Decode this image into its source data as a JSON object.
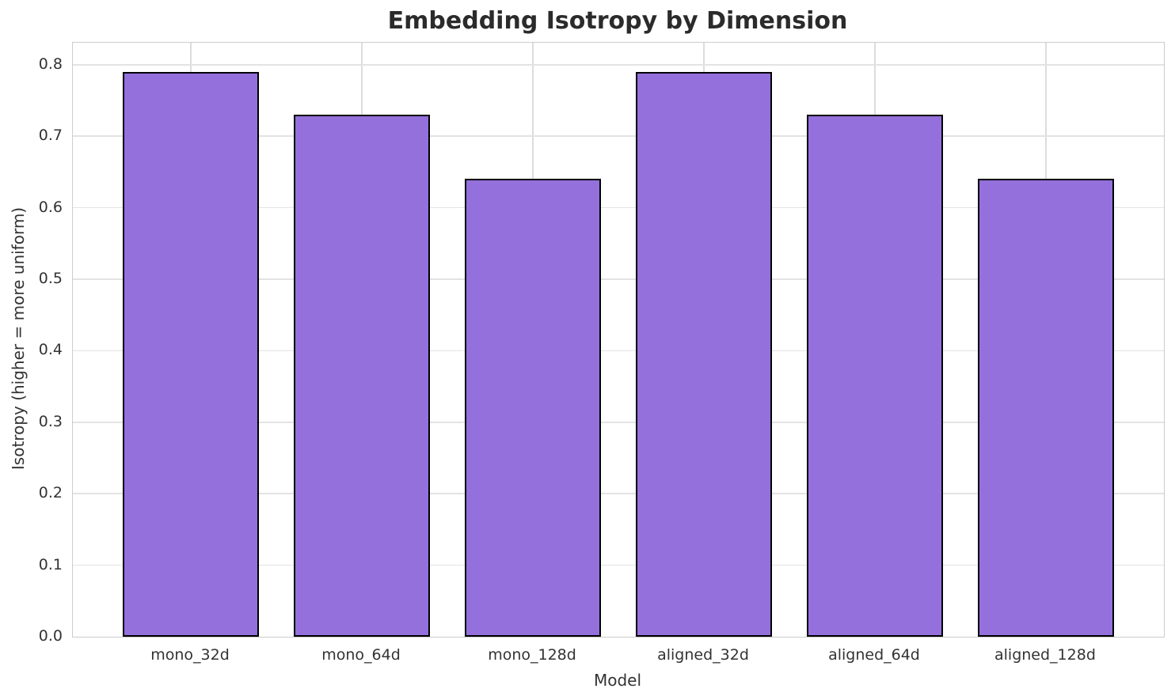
{
  "page": {
    "background": "#ffffff"
  },
  "chart_data": {
    "type": "bar",
    "title": "Embedding Isotropy by Dimension",
    "xlabel": "Model",
    "ylabel": "Isotropy (higher = more uniform)",
    "categories": [
      "mono_32d",
      "mono_64d",
      "mono_128d",
      "aligned_32d",
      "aligned_64d",
      "aligned_128d"
    ],
    "values": [
      0.79,
      0.73,
      0.64,
      0.79,
      0.73,
      0.64
    ],
    "yticks": [
      0.0,
      0.1,
      0.2,
      0.3,
      0.4,
      0.5,
      0.6,
      0.7,
      0.8
    ],
    "ytick_labels": [
      "0.0",
      "0.1",
      "0.2",
      "0.3",
      "0.4",
      "0.5",
      "0.6",
      "0.7",
      "0.8"
    ],
    "ylim": [
      0,
      0.8307
    ],
    "xlim": [
      -0.69,
      5.69
    ],
    "bar_width": 0.8,
    "grid": true,
    "legend_position": "none",
    "colors": {
      "bar_fill": "#9370DB",
      "bar_edge": "#000000",
      "gridline_h": "#e3e3e3",
      "gridline_v": "#dcdcdc",
      "spine": "#cccccc",
      "title_text": "#2b2b2b",
      "tick_text": "#333333"
    }
  }
}
